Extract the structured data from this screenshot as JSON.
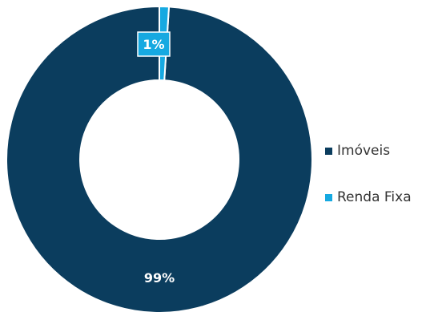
{
  "chart_data": {
    "type": "pie",
    "variant": "donut",
    "categories": [
      "Imóveis",
      "Renda Fixa"
    ],
    "values": [
      99,
      1
    ],
    "value_labels": [
      "99%",
      "1%"
    ],
    "colors": [
      "#0b3d5e",
      "#16a9e1"
    ],
    "title": "",
    "legend": {
      "placement": "right"
    }
  }
}
